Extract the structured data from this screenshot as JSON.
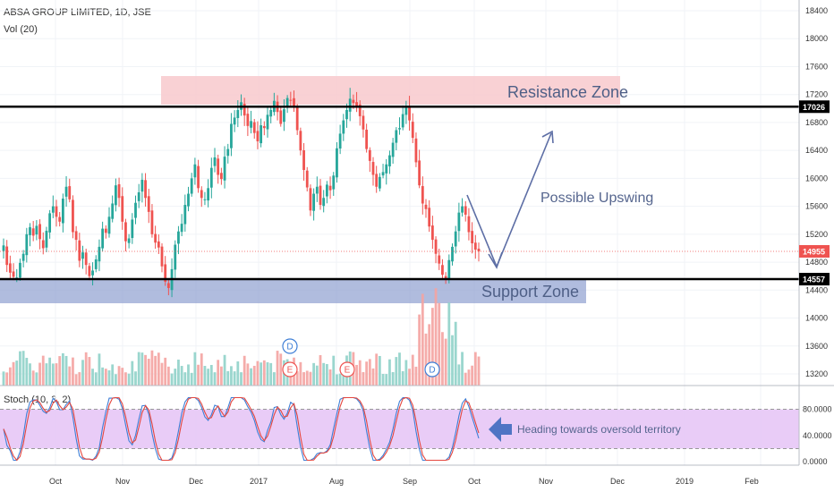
{
  "header": {
    "symbol": "ABSA GROUP LIMITED, 1D, JSE",
    "volume": "Vol (20)",
    "stoch": "Stoch (10, 3, 2)"
  },
  "chart_data": {
    "type": "candlestick",
    "price_ticks": [
      "18400",
      "18000",
      "17600",
      "17200",
      "16800",
      "16400",
      "16000",
      "15600",
      "15200",
      "14800",
      "14400",
      "14000",
      "13600",
      "13200"
    ],
    "oscillator_ticks": [
      "80.0000",
      "40.0000",
      "0.0000"
    ],
    "x_ticks": [
      "Oct",
      "Nov",
      "Dec",
      "2017",
      "Aug",
      "Sep",
      "Oct",
      "Nov",
      "Dec",
      "2019",
      "Feb"
    ],
    "price_markers": [
      {
        "label": "17026",
        "value": 17026,
        "style": "black"
      },
      {
        "label": "14955",
        "value": 14955,
        "style": "red"
      },
      {
        "label": "14557",
        "value": 14557,
        "style": "black"
      }
    ],
    "zones": [
      {
        "label": "Resistance Zone",
        "from": 17026,
        "to": 17400,
        "color": "#f8c9cd"
      },
      {
        "label": "Support Zone",
        "from": 14240,
        "to": 14580,
        "color": "#8f9fd0"
      }
    ],
    "annotations": [
      "Possible Upswing",
      "Heading towards oversold territory"
    ],
    "event_markers": [
      {
        "label": "D"
      },
      {
        "label": "E"
      },
      {
        "label": "E"
      },
      {
        "label": "D"
      }
    ],
    "stoch_levels": [
      80,
      20
    ],
    "closes": [
      15040,
      14760,
      14650,
      14590,
      14580,
      14790,
      14920,
      15200,
      15300,
      15180,
      15320,
      15130,
      15000,
      15250,
      15500,
      15600,
      15450,
      15380,
      15710,
      15880,
      15700,
      15230,
      15120,
      14820,
      14940,
      14760,
      14600,
      14680,
      14840,
      15020,
      15280,
      15220,
      15450,
      15640,
      15900,
      15720,
      15380,
      15100,
      15140,
      15410,
      15650,
      15800,
      15980,
      15720,
      15520,
      15200,
      15080,
      15010,
      14740,
      14520,
      14430,
      14700,
      15050,
      15240,
      15350,
      15620,
      15780,
      16000,
      16200,
      15860,
      15720,
      15700,
      15860,
      16150,
      16300,
      16050,
      15990,
      16310,
      16420,
      16780,
      16870,
      16980,
      17090,
      16900,
      16750,
      16820,
      16650,
      16530,
      16760,
      16720,
      16910,
      16980,
      17110,
      16950,
      16780,
      16990,
      17150,
      17120,
      17010,
      16690,
      16400,
      16120,
      15870,
      15540,
      15780,
      15880,
      15620,
      15720,
      15910,
      15830,
      16040,
      16430,
      16640,
      16830,
      16980,
      17140,
      17080,
      17040,
      16890,
      16700,
      16420,
      16250,
      16050,
      15880,
      16020,
      16090,
      16200,
      16330,
      16510,
      16690,
      16720,
      16920,
      17010,
      16830,
      16580,
      16230,
      15900,
      15640,
      15560,
      15310,
      15120,
      14920,
      14780,
      14620,
      14550,
      14830,
      15020,
      15240,
      15510,
      15600,
      15480,
      15230,
      15070,
      14980,
      14955
    ]
  }
}
